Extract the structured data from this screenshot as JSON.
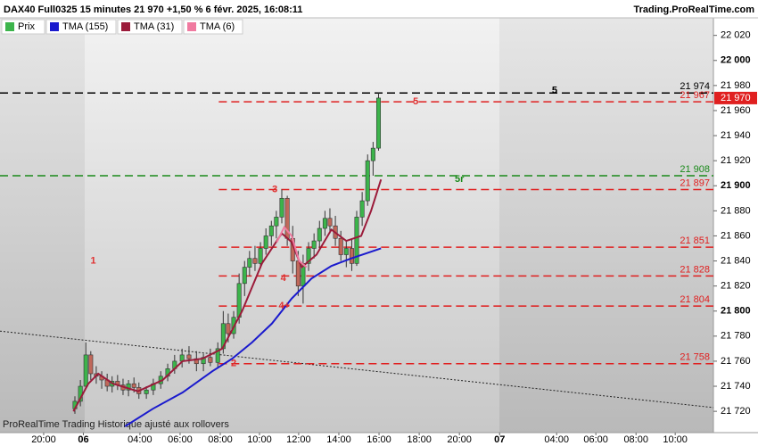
{
  "header": {
    "title": "DAX40 Full0325 15 minutes 21 970 +1,50 % 6 févr. 2025, 16:08:11",
    "site": "Trading.ProRealTime.com"
  },
  "footer": "ProRealTime Trading Historique ajusté aux rollovers",
  "chart_data": {
    "type": "candlestick",
    "up_color": "#3cb44b",
    "down_color": "#c0685a",
    "xlim": [
      -8.8,
      135
    ],
    "ylim": [
      21703,
      22034
    ],
    "xticks": [
      {
        "value": 0,
        "label": "20:00"
      },
      {
        "value": 8,
        "label": "06"
      },
      {
        "value": 19.4,
        "label": "04:00"
      },
      {
        "value": 27.5,
        "label": "06:00"
      },
      {
        "value": 35.6,
        "label": "08:00"
      },
      {
        "value": 43.5,
        "label": "10:00"
      },
      {
        "value": 51.4,
        "label": "12:00"
      },
      {
        "value": 59.5,
        "label": "14:00"
      },
      {
        "value": 67.6,
        "label": "16:00"
      },
      {
        "value": 75.7,
        "label": "18:00"
      },
      {
        "value": 83.8,
        "label": "20:00"
      },
      {
        "value": 91.9,
        "label": "07"
      },
      {
        "value": 103.4,
        "label": "04:00"
      },
      {
        "value": 111.3,
        "label": "06:00"
      },
      {
        "value": 119.4,
        "label": "08:00"
      },
      {
        "value": 127.3,
        "label": "10:00"
      }
    ],
    "yticks": [
      {
        "value": 22020,
        "label": "22 020"
      },
      {
        "value": 22000,
        "label": "22 000"
      },
      {
        "value": 21980,
        "label": "21 980"
      },
      {
        "value": 21960,
        "label": "21 960"
      },
      {
        "value": 21940,
        "label": "21 940"
      },
      {
        "value": 21920,
        "label": "21 920"
      },
      {
        "value": 21900,
        "label": "21 900"
      },
      {
        "value": 21880,
        "label": "21 880"
      },
      {
        "value": 21860,
        "label": "21 860"
      },
      {
        "value": 21840,
        "label": "21 840"
      },
      {
        "value": 21820,
        "label": "21 820"
      },
      {
        "value": 21800,
        "label": "21 800"
      },
      {
        "value": 21780,
        "label": "21 780"
      },
      {
        "value": 21760,
        "label": "21 760"
      },
      {
        "value": 21740,
        "label": "21 740"
      },
      {
        "value": 21720,
        "label": "21 720"
      }
    ],
    "candles": [
      {
        "x": 6.3,
        "open": 21722,
        "high": 21732,
        "low": 21718,
        "close": 21728
      },
      {
        "x": 7.4,
        "open": 21728,
        "high": 21745,
        "low": 21724,
        "close": 21740
      },
      {
        "x": 8.5,
        "open": 21740,
        "high": 21775,
        "low": 21738,
        "close": 21765
      },
      {
        "x": 9.5,
        "open": 21765,
        "high": 21768,
        "low": 21745,
        "close": 21750
      },
      {
        "x": 10.6,
        "open": 21750,
        "high": 21756,
        "low": 21742,
        "close": 21748
      },
      {
        "x": 11.7,
        "open": 21748,
        "high": 21752,
        "low": 21738,
        "close": 21745
      },
      {
        "x": 12.8,
        "open": 21745,
        "high": 21750,
        "low": 21736,
        "close": 21740
      },
      {
        "x": 13.8,
        "open": 21740,
        "high": 21748,
        "low": 21735,
        "close": 21744
      },
      {
        "x": 14.9,
        "open": 21744,
        "high": 21749,
        "low": 21737,
        "close": 21741
      },
      {
        "x": 16.0,
        "open": 21741,
        "high": 21746,
        "low": 21733,
        "close": 21737
      },
      {
        "x": 17.1,
        "open": 21737,
        "high": 21745,
        "low": 21732,
        "close": 21742
      },
      {
        "x": 18.2,
        "open": 21742,
        "high": 21747,
        "low": 21735,
        "close": 21739
      },
      {
        "x": 19.2,
        "open": 21739,
        "high": 21743,
        "low": 21730,
        "close": 21734
      },
      {
        "x": 20.7,
        "open": 21734,
        "high": 21740,
        "low": 21730,
        "close": 21737
      },
      {
        "x": 22.1,
        "open": 21737,
        "high": 21746,
        "low": 21733,
        "close": 21742
      },
      {
        "x": 23.6,
        "open": 21742,
        "high": 21752,
        "low": 21738,
        "close": 21748
      },
      {
        "x": 25.0,
        "open": 21748,
        "high": 21758,
        "low": 21744,
        "close": 21754
      },
      {
        "x": 26.4,
        "open": 21754,
        "high": 21765,
        "low": 21750,
        "close": 21760
      },
      {
        "x": 27.9,
        "open": 21760,
        "high": 21770,
        "low": 21755,
        "close": 21765
      },
      {
        "x": 29.3,
        "open": 21765,
        "high": 21772,
        "low": 21758,
        "close": 21762
      },
      {
        "x": 30.8,
        "open": 21762,
        "high": 21768,
        "low": 21752,
        "close": 21758
      },
      {
        "x": 32.2,
        "open": 21758,
        "high": 21766,
        "low": 21752,
        "close": 21763
      },
      {
        "x": 33.6,
        "open": 21763,
        "high": 21770,
        "low": 21756,
        "close": 21759
      },
      {
        "x": 35.1,
        "open": 21759,
        "high": 21775,
        "low": 21755,
        "close": 21770
      },
      {
        "x": 36.2,
        "open": 21770,
        "high": 21800,
        "low": 21766,
        "close": 21790
      },
      {
        "x": 37.2,
        "open": 21790,
        "high": 21798,
        "low": 21775,
        "close": 21782
      },
      {
        "x": 38.3,
        "open": 21782,
        "high": 21800,
        "low": 21778,
        "close": 21795
      },
      {
        "x": 39.4,
        "open": 21795,
        "high": 21830,
        "low": 21790,
        "close": 21822
      },
      {
        "x": 40.5,
        "open": 21822,
        "high": 21840,
        "low": 21812,
        "close": 21835
      },
      {
        "x": 41.5,
        "open": 21835,
        "high": 21848,
        "low": 21828,
        "close": 21842
      },
      {
        "x": 42.6,
        "open": 21842,
        "high": 21852,
        "low": 21832,
        "close": 21838
      },
      {
        "x": 43.7,
        "open": 21838,
        "high": 21855,
        "low": 21834,
        "close": 21850
      },
      {
        "x": 44.8,
        "open": 21850,
        "high": 21866,
        "low": 21845,
        "close": 21860
      },
      {
        "x": 45.9,
        "open": 21860,
        "high": 21872,
        "low": 21852,
        "close": 21868
      },
      {
        "x": 46.9,
        "open": 21868,
        "high": 21880,
        "low": 21858,
        "close": 21875
      },
      {
        "x": 48.0,
        "open": 21875,
        "high": 21897,
        "low": 21870,
        "close": 21890
      },
      {
        "x": 49.1,
        "open": 21890,
        "high": 21892,
        "low": 21852,
        "close": 21858
      },
      {
        "x": 50.2,
        "open": 21858,
        "high": 21868,
        "low": 21830,
        "close": 21840
      },
      {
        "x": 51.3,
        "open": 21840,
        "high": 21848,
        "low": 21812,
        "close": 21820
      },
      {
        "x": 52.3,
        "open": 21820,
        "high": 21845,
        "low": 21806,
        "close": 21838
      },
      {
        "x": 53.4,
        "open": 21838,
        "high": 21855,
        "low": 21832,
        "close": 21850
      },
      {
        "x": 54.5,
        "open": 21850,
        "high": 21862,
        "low": 21842,
        "close": 21856
      },
      {
        "x": 55.6,
        "open": 21856,
        "high": 21872,
        "low": 21850,
        "close": 21866
      },
      {
        "x": 56.7,
        "open": 21866,
        "high": 21880,
        "low": 21860,
        "close": 21874
      },
      {
        "x": 57.7,
        "open": 21874,
        "high": 21882,
        "low": 21862,
        "close": 21868
      },
      {
        "x": 58.8,
        "open": 21868,
        "high": 21876,
        "low": 21852,
        "close": 21858
      },
      {
        "x": 59.9,
        "open": 21858,
        "high": 21864,
        "low": 21840,
        "close": 21845
      },
      {
        "x": 61.0,
        "open": 21845,
        "high": 21856,
        "low": 21835,
        "close": 21850
      },
      {
        "x": 62.1,
        "open": 21850,
        "high": 21858,
        "low": 21832,
        "close": 21838
      },
      {
        "x": 63.1,
        "open": 21838,
        "high": 21880,
        "low": 21836,
        "close": 21875
      },
      {
        "x": 64.2,
        "open": 21875,
        "high": 21895,
        "low": 21868,
        "close": 21888
      },
      {
        "x": 65.3,
        "open": 21888,
        "high": 21925,
        "low": 21884,
        "close": 21920
      },
      {
        "x": 66.4,
        "open": 21920,
        "high": 21935,
        "low": 21908,
        "close": 21930
      },
      {
        "x": 67.5,
        "open": 21930,
        "high": 21974,
        "low": 21928,
        "close": 21970
      }
    ],
    "series": [
      {
        "name": "Prix",
        "color": "#3cb44b"
      },
      {
        "name": "TMA (155)",
        "color": "#1a1acd",
        "x": [
          16.4,
          22,
          28,
          34,
          38,
          42,
          46,
          50,
          54,
          58,
          62,
          68
        ],
        "values": [
          21708,
          21722,
          21735,
          21752,
          21762,
          21775,
          21790,
          21810,
          21826,
          21836,
          21842,
          21850
        ]
      },
      {
        "name": "TMA (31)",
        "color": "#9b1b3a",
        "x": [
          6,
          9,
          11,
          14,
          19,
          24,
          28,
          32,
          36,
          40,
          44,
          48,
          50,
          52,
          55,
          58,
          61,
          64,
          66,
          68
        ],
        "values": [
          21720,
          21742,
          21750,
          21742,
          21736,
          21745,
          21760,
          21762,
          21770,
          21800,
          21838,
          21862,
          21855,
          21835,
          21845,
          21865,
          21856,
          21860,
          21880,
          21905
        ]
      },
      {
        "name": "TMA (6)",
        "color": "#f07aa0",
        "x": [
          47,
          48.5,
          50,
          51.5,
          53
        ],
        "values": [
          21855,
          21867,
          21860,
          21840,
          21835
        ]
      }
    ],
    "levels": [
      {
        "value": 21974,
        "label": "21 974",
        "color": "#000000",
        "x_start": -8.8
      },
      {
        "value": 21967,
        "label": "21 967",
        "color": "#e02020",
        "x_start": 35.3
      },
      {
        "value": 21908,
        "label": "21 908",
        "color": "#1a8a1a",
        "x_start": -8.8
      },
      {
        "value": 21897,
        "label": "21 897",
        "color": "#e02020",
        "x_start": 35.3
      },
      {
        "value": 21851,
        "label": "21 851",
        "color": "#e02020",
        "x_start": 35.3
      },
      {
        "value": 21828,
        "label": "21 828",
        "color": "#e02020",
        "x_start": 35.3
      },
      {
        "value": 21804,
        "label": "21 804",
        "color": "#e02020",
        "x_start": 35.3
      },
      {
        "value": 21758,
        "label": "21 758",
        "color": "#e02020",
        "x_start": 35.3
      }
    ],
    "last_price": {
      "value": 21970,
      "label": "21 970"
    },
    "trendline": {
      "x": [
        -8.8,
        135
      ],
      "values": [
        21784,
        21723
      ]
    },
    "annotations": [
      {
        "text": "1",
        "x": 10,
        "y": 21840,
        "color": "#e03030"
      },
      {
        "text": "2",
        "x": 38.3,
        "y": 21758,
        "color": "#e03030"
      },
      {
        "text": "3",
        "x": 46.6,
        "y": 21897,
        "color": "#e03030"
      },
      {
        "text": "4",
        "x": 48.3,
        "y": 21826,
        "color": "#e03030"
      },
      {
        "text": "4+",
        "x": 48.5,
        "y": 21804,
        "color": "#e03030"
      },
      {
        "text": "5",
        "x": 75,
        "y": 21967,
        "color": "#e03030"
      },
      {
        "text": "5",
        "x": 103,
        "y": 21976,
        "color": "#000000"
      },
      {
        "text": "5r",
        "x": 83.8,
        "y": 21905,
        "color": "#1a8a1a"
      }
    ]
  }
}
